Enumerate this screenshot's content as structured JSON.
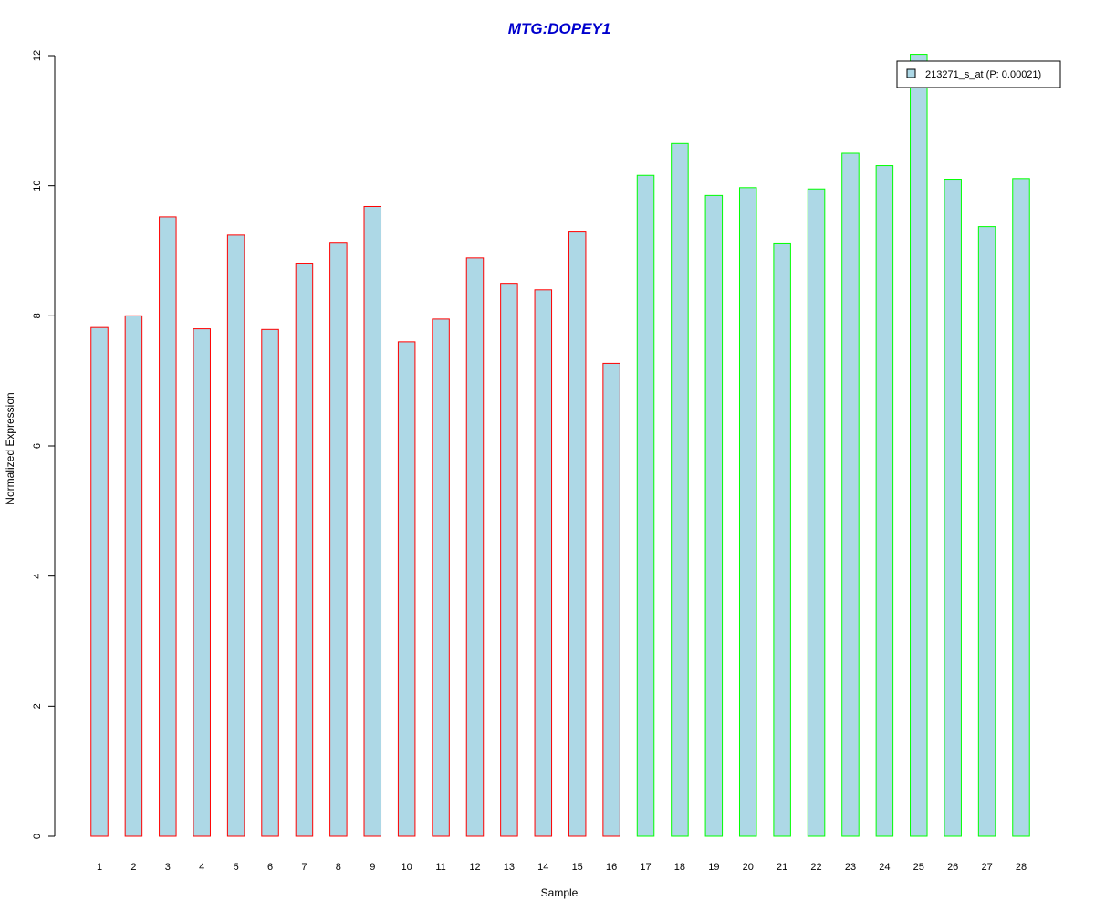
{
  "colors": {
    "title": "#0000CD",
    "bar_fill": "#ADD8E6",
    "group1_border": "#FF0000",
    "group2_border": "#00FF00",
    "axis": "#000000"
  },
  "chart_data": {
    "type": "bar",
    "title": "MTG:DOPEY1",
    "xlabel": "Sample",
    "ylabel": "Normalized Expression",
    "ylim": [
      0,
      12
    ],
    "yticks": [
      0,
      2,
      4,
      6,
      8,
      10,
      12
    ],
    "grid": false,
    "legend_position": "top-right",
    "categories": [
      "1",
      "2",
      "3",
      "4",
      "5",
      "6",
      "7",
      "8",
      "9",
      "10",
      "11",
      "12",
      "13",
      "14",
      "15",
      "16",
      "17",
      "18",
      "19",
      "20",
      "21",
      "22",
      "23",
      "24",
      "25",
      "26",
      "27",
      "28"
    ],
    "series": [
      {
        "name": "213271_s_at (P: 0.00021)",
        "values": [
          7.82,
          8.0,
          9.52,
          7.8,
          9.24,
          7.79,
          8.81,
          9.13,
          9.68,
          7.6,
          7.95,
          8.89,
          8.5,
          8.4,
          9.3,
          7.27,
          10.16,
          10.65,
          9.85,
          9.97,
          9.12,
          9.95,
          10.5,
          10.31,
          12.02,
          10.1,
          9.37,
          10.11
        ],
        "group": [
          1,
          1,
          1,
          1,
          1,
          1,
          1,
          1,
          1,
          1,
          1,
          1,
          1,
          1,
          1,
          1,
          2,
          2,
          2,
          2,
          2,
          2,
          2,
          2,
          2,
          2,
          2,
          2
        ]
      }
    ],
    "legend": {
      "label": "213271_s_at (P: 0.00021)"
    }
  }
}
